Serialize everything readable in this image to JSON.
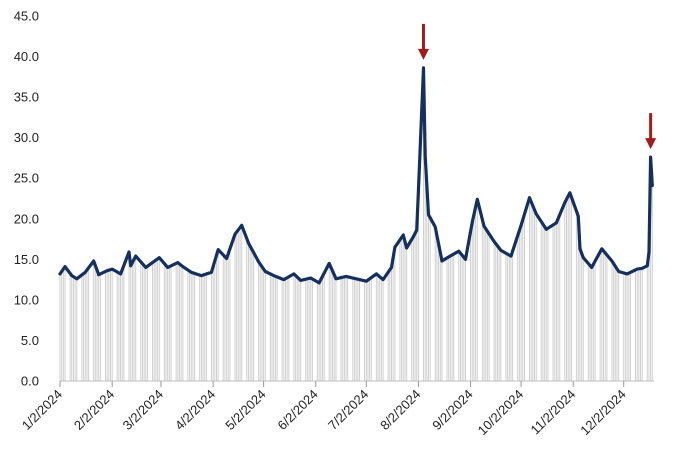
{
  "chart_data": {
    "type": "line",
    "title": "",
    "xlabel": "",
    "ylabel": "",
    "ylim": [
      0,
      45
    ],
    "yticks": [
      "0.0",
      "5.0",
      "10.0",
      "15.0",
      "20.0",
      "25.0",
      "30.0",
      "35.0",
      "40.0",
      "45.0"
    ],
    "xticks": [
      "1/2/2024",
      "2/2/2024",
      "3/2/2024",
      "4/2/2024",
      "5/2/2024",
      "6/2/2024",
      "7/2/2024",
      "8/2/2024",
      "9/2/2024",
      "10/2/2024",
      "11/2/2024",
      "12/2/2024"
    ],
    "grid": false,
    "legend": "none",
    "line_color": "#14305e",
    "drop_line_color": "#cfcfcf",
    "arrow_color": "#a31a1a",
    "annotations": [
      {
        "type": "arrow",
        "x": "2024-08-05",
        "y": 38.6
      },
      {
        "type": "arrow",
        "x": "2024-12-18",
        "y": 27.6
      }
    ],
    "series": [
      {
        "x": [
          "2024-01-02",
          "2024-01-05",
          "2024-01-09",
          "2024-01-12",
          "2024-01-17",
          "2024-01-22",
          "2024-01-25",
          "2024-01-30",
          "2024-02-02",
          "2024-02-07",
          "2024-02-12",
          "2024-02-13",
          "2024-02-16",
          "2024-02-22",
          "2024-02-26",
          "2024-03-01",
          "2024-03-06",
          "2024-03-12",
          "2024-03-15",
          "2024-03-20",
          "2024-03-26",
          "2024-04-01",
          "2024-04-05",
          "2024-04-10",
          "2024-04-15",
          "2024-04-19",
          "2024-04-23",
          "2024-04-29",
          "2024-05-03",
          "2024-05-08",
          "2024-05-14",
          "2024-05-20",
          "2024-05-24",
          "2024-05-30",
          "2024-06-04",
          "2024-06-10",
          "2024-06-14",
          "2024-06-20",
          "2024-06-26",
          "2024-07-02",
          "2024-07-08",
          "2024-07-12",
          "2024-07-17",
          "2024-07-19",
          "2024-07-24",
          "2024-07-26",
          "2024-07-30",
          "2024-08-01",
          "2024-08-02",
          "2024-08-05",
          "2024-08-06",
          "2024-08-08",
          "2024-08-12",
          "2024-08-16",
          "2024-08-20",
          "2024-08-26",
          "2024-08-30",
          "2024-09-03",
          "2024-09-06",
          "2024-09-10",
          "2024-09-16",
          "2024-09-20",
          "2024-09-26",
          "2024-10-02",
          "2024-10-07",
          "2024-10-11",
          "2024-10-17",
          "2024-10-23",
          "2024-10-28",
          "2024-10-31",
          "2024-11-05",
          "2024-11-06",
          "2024-11-08",
          "2024-11-13",
          "2024-11-19",
          "2024-11-25",
          "2024-11-29",
          "2024-12-04",
          "2024-12-10",
          "2024-12-13",
          "2024-12-16",
          "2024-12-17",
          "2024-12-18",
          "2024-12-19"
        ],
        "values": [
          13.2,
          14.1,
          13.0,
          12.6,
          13.4,
          14.8,
          13.1,
          13.6,
          13.8,
          13.2,
          15.9,
          14.2,
          15.4,
          14.0,
          14.6,
          15.2,
          14.0,
          14.6,
          14.1,
          13.4,
          13.0,
          13.4,
          16.2,
          15.1,
          18.1,
          19.2,
          17.0,
          14.7,
          13.5,
          13.0,
          12.5,
          13.2,
          12.4,
          12.7,
          12.1,
          14.5,
          12.6,
          12.9,
          12.6,
          12.3,
          13.2,
          12.5,
          14.0,
          16.5,
          18.0,
          16.4,
          17.8,
          18.6,
          23.4,
          38.6,
          27.7,
          20.5,
          19.0,
          14.8,
          15.3,
          16.0,
          15.0,
          19.6,
          22.4,
          19.1,
          17.2,
          16.1,
          15.4,
          19.2,
          22.6,
          20.6,
          18.7,
          19.5,
          22.0,
          23.2,
          20.3,
          16.3,
          15.2,
          14.0,
          16.3,
          14.8,
          13.5,
          13.2,
          13.8,
          13.9,
          14.2,
          15.9,
          27.6,
          24.1
        ]
      }
    ]
  }
}
